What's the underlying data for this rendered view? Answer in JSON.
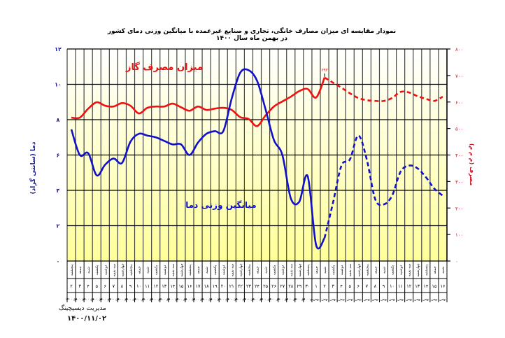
{
  "title": "نمودار مقایسه ای میزان مصارف خانگی، تجاری و صنایع غیرعمده با میانگین وزنی دمای کشور در بهمن ماه سال ۱۴۰۰",
  "footer": {
    "department": "مدیریت دیسپچینگ",
    "date": "۱۴۰۰/۱۱/۰۲"
  },
  "colors": {
    "gas": "#ee1111",
    "temp": "#1111cc",
    "grid": "#000000",
    "bg_top": "#ffffff",
    "bg_bottom": "#ffff99",
    "left_axis_text": "#1a1a99",
    "right_axis_text": "#cc1122"
  },
  "chart_data": {
    "type": "line",
    "title": "نمودار مقایسه ای میزان مصارف خانگی، تجاری و صنایع غیرعمده با میانگین وزنی دمای کشور در بهمن ماه سال ۱۴۰۰",
    "ylabel_left": "دما (سانتی گراد)",
    "ylabel_right": "مصرف (م م م)",
    "ylim_left": [
      0,
      12
    ],
    "ylim_right": [
      0,
      800
    ],
    "yticks_left": [
      "۰",
      "۲",
      "۴",
      "۶",
      "۸",
      "۱۰",
      "۱۲"
    ],
    "yticks_right": [
      "۰",
      "۱۰۰",
      "۲۰۰",
      "۳۰۰",
      "۴۰۰",
      "۵۰۰",
      "۶۰۰",
      "۷۰۰",
      "۸۰۰"
    ],
    "grid": true,
    "weekdays": [
      "پنجشنبه",
      "جمعه",
      "شنبه",
      "یکشنبه",
      "دوشنبه",
      "سه شنبه",
      "چهارشنبه",
      "پنجشنبه",
      "جمعه",
      "شنبه",
      "یکشنبه",
      "دوشنبه",
      "سه شنبه",
      "چهارشنبه",
      "پنجشنبه",
      "جمعه",
      "شنبه",
      "یکشنبه",
      "دوشنبه",
      "سه شنبه",
      "چهارشنبه",
      "پنجشنبه",
      "جمعه",
      "شنبه",
      "یکشنبه",
      "دوشنبه",
      "سه شنبه",
      "چهارشنبه",
      "پنجشنبه",
      "جمعه",
      "شنبه",
      "یکشنبه",
      "دوشنبه",
      "سه شنبه",
      "چهارشنبه",
      "پنجشنبه",
      "جمعه",
      "شنبه",
      "یکشنبه",
      "دوشنبه",
      "سه شنبه",
      "چهارشنبه",
      "پنجشنبه",
      "جمعه",
      "شنبه"
    ],
    "categories": [
      "۲",
      "۳",
      "۴",
      "۵",
      "۶",
      "۷",
      "۸",
      "۹",
      "۱۰",
      "۱۱",
      "۱۲",
      "۱۳",
      "۱۴",
      "۱۵",
      "۱۶",
      "۱۷",
      "۱۸",
      "۱۹",
      "۲۰",
      "۲۱",
      "۲۲",
      "۲۳",
      "۲۴",
      "۲۵",
      "۲۶",
      "۲۷",
      "۲۸",
      "۲۹",
      "۳۰",
      "۱",
      "۲",
      "۳",
      "۴",
      "۵",
      "۶",
      "۷",
      "۸",
      "۹",
      "۱۰",
      "۱۱",
      "۱۲",
      "۱۳",
      "۱۴",
      "۱۵",
      "۱۶"
    ],
    "months": [
      "دی ۱۴۰۰",
      "دی ۱۴۰۰",
      "دی ۱۴۰۰",
      "دی ۱۴۰۰",
      "دی ۱۴۰۰",
      "دی ۱۴۰۰",
      "دی ۱۴۰۰",
      "دی ۱۴۰۰",
      "دی ۱۴۰۰",
      "دی ۱۴۰۰",
      "دی ۱۴۰۰",
      "دی ۱۴۰۰",
      "دی ۱۴۰۰",
      "دی ۱۴۰۰",
      "دی ۱۴۰۰",
      "دی ۱۴۰۰",
      "دی ۱۴۰۰",
      "دی ۱۴۰۰",
      "دی ۱۴۰۰",
      "دی ۱۴۰۰",
      "دی ۱۴۰۰",
      "دی ۱۴۰۰",
      "دی ۱۴۰۰",
      "دی ۱۴۰۰",
      "دی ۱۴۰۰",
      "دی ۱۴۰۰",
      "دی ۱۴۰۰",
      "دی ۱۴۰۰",
      "دی ۱۴۰۰",
      "بهمن",
      "بهمن",
      "بهمن",
      "بهمن",
      "بهمن",
      "بهمن",
      "بهمن",
      "بهمن",
      "بهمن",
      "بهمن",
      "بهمن",
      "بهمن",
      "بهمن",
      "بهمن",
      "بهمن",
      "بهمن"
    ],
    "series": [
      {
        "name": "میزان مصرف گاز",
        "axis": "right",
        "color": "#ee1111",
        "dashed_from_index": 30,
        "values": [
          541,
          541,
          575,
          599,
          586,
          583,
          596,
          586,
          557,
          578,
          583,
          583,
          594,
          580,
          567,
          583,
          570,
          575,
          578,
          570,
          543,
          536,
          509,
          549,
          583,
          602,
          620,
          641,
          649,
          617,
          692,
          673,
          654,
          633,
          615,
          607,
          604,
          604,
          615,
          638,
          636,
          622,
          612,
          604,
          620
        ]
      },
      {
        "name": "میانگین وزنی دما",
        "axis": "left",
        "color": "#1111cc",
        "dashed_from_index": 30,
        "values": [
          7.45,
          6.0,
          6.1,
          4.85,
          5.45,
          5.8,
          5.55,
          6.75,
          7.2,
          7.1,
          7.0,
          6.8,
          6.6,
          6.6,
          6.0,
          6.7,
          7.2,
          7.35,
          7.35,
          9.2,
          10.65,
          10.8,
          10.2,
          8.6,
          6.85,
          6.0,
          3.55,
          3.35,
          4.8,
          0.9,
          1.3,
          3.3,
          5.4,
          5.75,
          7.1,
          5.75,
          3.5,
          3.2,
          3.7,
          5.05,
          5.4,
          5.25,
          4.75,
          4.1,
          3.7
        ]
      }
    ],
    "annotations": [
      {
        "text": "میزان مصرف گاز",
        "series": "gas",
        "color": "#ee1111"
      },
      {
        "text": "میانگین وزنی دما",
        "series": "temp",
        "color": "#1111cc"
      },
      {
        "text": "۶۹۲",
        "index": 30,
        "series": "gas",
        "note": "peak value label"
      }
    ]
  }
}
